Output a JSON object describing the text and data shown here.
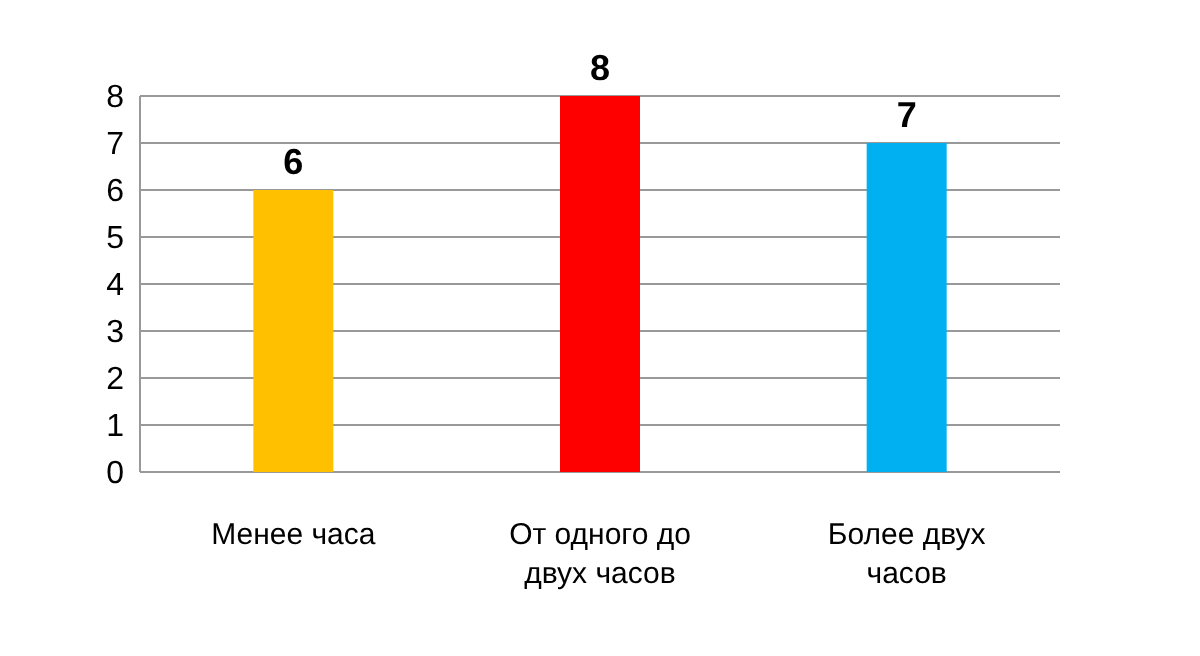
{
  "chart_data": {
    "type": "bar",
    "categories": [
      "Менее часа",
      "От одного до двух часов",
      "Более двух часов"
    ],
    "values": [
      6,
      8,
      7
    ],
    "colors": [
      "#ffc000",
      "#ff0000",
      "#00b0f0"
    ],
    "ylim": [
      0,
      8
    ],
    "yticks": [
      0,
      1,
      2,
      3,
      4,
      5,
      6,
      7,
      8
    ],
    "grid": "y",
    "data_labels": true
  }
}
